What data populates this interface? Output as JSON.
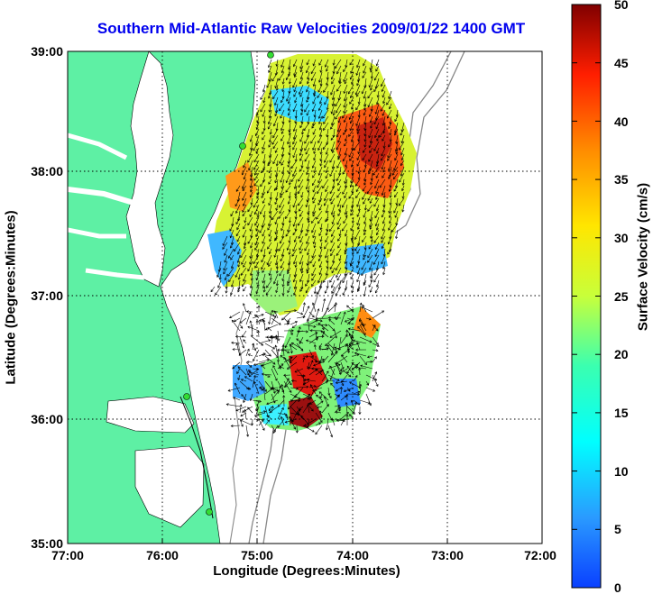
{
  "title": "Southern Mid-Atlantic Raw Velocities 2009/01/22 1400 GMT",
  "x_axis": {
    "label": "Longitude (Degrees:Minutes)",
    "ticks": [
      "77:00",
      "76:00",
      "75:00",
      "74:00",
      "73:00",
      "72:00"
    ]
  },
  "y_axis": {
    "label": "Latitude (Degrees:Minutes)",
    "ticks": [
      "39:00",
      "38:00",
      "37:00",
      "36:00",
      "35:00"
    ]
  },
  "colorbar": {
    "label": "Surface Velocity (cm/s)",
    "ticks": [
      "50",
      "45",
      "40",
      "35",
      "30",
      "25",
      "20",
      "15",
      "10",
      "5",
      "0"
    ],
    "range": [
      0,
      50
    ],
    "colormap": "jet"
  },
  "map": {
    "lon_range": [
      -77,
      -72
    ],
    "lat_range": [
      35,
      39
    ],
    "land_color": "#5ef0a4",
    "water_color": "#ffffff",
    "bathymetry_color": "#888888",
    "station_color": "#33dd33"
  }
}
